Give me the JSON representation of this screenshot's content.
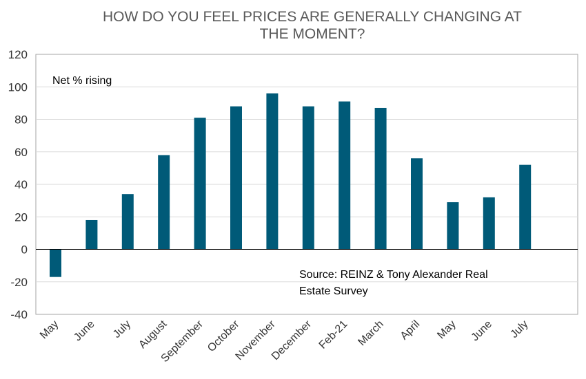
{
  "chart_data": {
    "type": "bar",
    "title_lines": [
      "HOW DO YOU FEEL PRICES ARE GENERALLY CHANGING AT",
      "THE MOMENT?"
    ],
    "annotation": "Net % rising",
    "source_lines": [
      "Source: REINZ & Tony Alexander  Real",
      "Estate Survey"
    ],
    "categories": [
      "May",
      "June",
      "July",
      "August",
      "September",
      "October",
      "November",
      "December",
      "Feb-21",
      "March",
      "April",
      "May",
      "June",
      "July"
    ],
    "values": [
      -17,
      18,
      34,
      58,
      81,
      88,
      96,
      88,
      91,
      87,
      56,
      29,
      32,
      52
    ],
    "ylim": [
      -40,
      120
    ],
    "yticks": [
      -40,
      -20,
      0,
      20,
      40,
      60,
      80,
      100,
      120
    ],
    "bar_color": "#005a78",
    "grid": true
  }
}
